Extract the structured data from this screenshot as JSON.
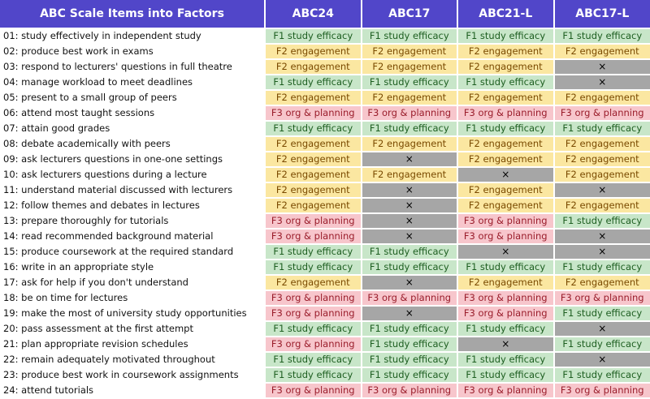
{
  "table": {
    "headers": [
      "ABC Scale Items into Factors",
      "ABC24",
      "ABC17",
      "ABC21-L",
      "ABC17-L"
    ],
    "legend": {
      "F1": "F1 study efficacy",
      "F2": "F2 engagement",
      "F3": "F3 org & planning",
      "X": "×"
    },
    "colors": {
      "header": "#5146c9",
      "F1": "#c8e6c9",
      "F2": "#fbe7a1",
      "F3": "#f7c6cc",
      "X": "#a6a6a6"
    },
    "rows": [
      {
        "item": "01: study effectively in independent study",
        "cells": [
          "F1",
          "F1",
          "F1",
          "F1"
        ]
      },
      {
        "item": "02: produce best work in exams",
        "cells": [
          "F2",
          "F2",
          "F2",
          "F2"
        ]
      },
      {
        "item": "03: respond to lecturers' questions in full theatre",
        "cells": [
          "F2",
          "F2",
          "F2",
          "X"
        ]
      },
      {
        "item": "04: manage workload to meet deadlines",
        "cells": [
          "F1",
          "F1",
          "F1",
          "X"
        ]
      },
      {
        "item": "05: present to a small group of peers",
        "cells": [
          "F2",
          "F2",
          "F2",
          "F2"
        ]
      },
      {
        "item": "06: attend most taught sessions",
        "cells": [
          "F3",
          "F3",
          "F3",
          "F3"
        ]
      },
      {
        "item": "07: attain good grades",
        "cells": [
          "F1",
          "F1",
          "F1",
          "F1"
        ]
      },
      {
        "item": "08: debate academically with peers",
        "cells": [
          "F2",
          "F2",
          "F2",
          "F2"
        ]
      },
      {
        "item": "09: ask lecturers questions in one-one settings",
        "cells": [
          "F2",
          "X",
          "F2",
          "F2"
        ]
      },
      {
        "item": "10: ask lecturers questions during a lecture",
        "cells": [
          "F2",
          "F2",
          "X",
          "F2"
        ]
      },
      {
        "item": "11: understand material discussed with lecturers",
        "cells": [
          "F2",
          "X",
          "F2",
          "X"
        ]
      },
      {
        "item": "12: follow themes and debates in lectures",
        "cells": [
          "F2",
          "X",
          "F2",
          "F2"
        ]
      },
      {
        "item": "13: prepare thoroughly for tutorials",
        "cells": [
          "F3",
          "X",
          "F3",
          "F1"
        ]
      },
      {
        "item": "14: read recommended background material",
        "cells": [
          "F3",
          "X",
          "F3",
          "X"
        ]
      },
      {
        "item": "15: produce coursework at the required standard",
        "cells": [
          "F1",
          "F1",
          "X",
          "X"
        ]
      },
      {
        "item": "16: write in an appropriate style",
        "cells": [
          "F1",
          "F1",
          "F1",
          "F1"
        ]
      },
      {
        "item": "17: ask for help if you don't understand",
        "cells": [
          "F2",
          "X",
          "F2",
          "F2"
        ]
      },
      {
        "item": "18: be on time for lectures",
        "cells": [
          "F3",
          "F3",
          "F3",
          "F3"
        ]
      },
      {
        "item": "19: make the most of university study opportunities",
        "cells": [
          "F3",
          "X",
          "F3",
          "F1"
        ]
      },
      {
        "item": "20: pass assessment at the first attempt",
        "cells": [
          "F1",
          "F1",
          "F1",
          "X"
        ]
      },
      {
        "item": "21: plan appropriate revision schedules",
        "cells": [
          "F3",
          "F1",
          "X",
          "F1"
        ]
      },
      {
        "item": "22: remain adequately motivated throughout",
        "cells": [
          "F1",
          "F1",
          "F1",
          "X"
        ]
      },
      {
        "item": "23: produce best work in coursework assignments",
        "cells": [
          "F1",
          "F1",
          "F1",
          "F1"
        ]
      },
      {
        "item": "24: attend tutorials",
        "cells": [
          "F3",
          "F3",
          "F3",
          "F3"
        ]
      }
    ]
  }
}
